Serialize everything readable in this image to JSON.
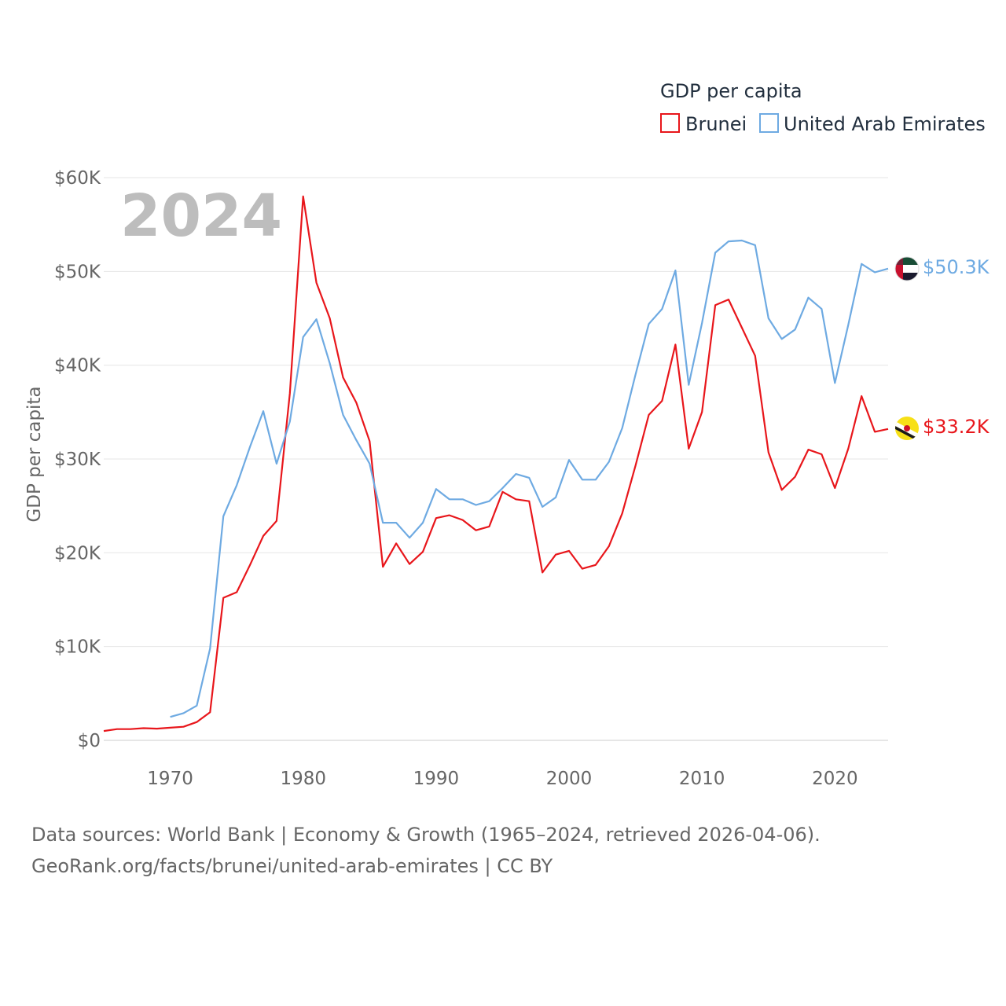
{
  "chart_data": {
    "type": "line",
    "title": "GDP per capita",
    "xlabel": "",
    "ylabel": "GDP per capita",
    "xlim": [
      1965,
      2024
    ],
    "ylim": [
      0,
      60000
    ],
    "x_ticks": [
      1970,
      1980,
      1990,
      2000,
      2010,
      2020
    ],
    "y_ticks": [
      0,
      10000,
      20000,
      30000,
      40000,
      50000,
      60000
    ],
    "y_tick_labels": [
      "$0",
      "$10K",
      "$20K",
      "$30K",
      "$40K",
      "$50K",
      "$60K"
    ],
    "year_label": "2024",
    "grid": true,
    "legend_position": "top-right",
    "series": [
      {
        "name": "Brunei",
        "color": "#e8161b",
        "end_label": "$33.2K",
        "flag": "brunei-flag",
        "x": [
          1965,
          1966,
          1967,
          1968,
          1969,
          1970,
          1971,
          1972,
          1973,
          1974,
          1975,
          1976,
          1977,
          1978,
          1979,
          1980,
          1981,
          1982,
          1983,
          1984,
          1985,
          1986,
          1987,
          1988,
          1989,
          1990,
          1991,
          1992,
          1993,
          1994,
          1995,
          1996,
          1997,
          1998,
          1999,
          2000,
          2001,
          2002,
          2003,
          2004,
          2005,
          2006,
          2007,
          2008,
          2009,
          2010,
          2011,
          2012,
          2013,
          2014,
          2015,
          2016,
          2017,
          2018,
          2019,
          2020,
          2021,
          2022,
          2023,
          2024
        ],
        "values": [
          1000,
          1200,
          1200,
          1300,
          1250,
          1350,
          1450,
          1950,
          3000,
          15200,
          15800,
          18700,
          21800,
          23400,
          37000,
          58000,
          48800,
          45000,
          38700,
          36000,
          31900,
          18500,
          21000,
          18800,
          20100,
          23700,
          24000,
          23500,
          22400,
          22800,
          26500,
          25700,
          25500,
          17900,
          19800,
          20200,
          18300,
          18700,
          20700,
          24200,
          29300,
          34700,
          36200,
          42200,
          31100,
          35000,
          46400,
          47000,
          44000,
          41000,
          30700,
          26700,
          28100,
          31000,
          30500,
          26900,
          31100,
          36700,
          32900,
          33200
        ]
      },
      {
        "name": "United Arab Emirates",
        "color": "#6eaae2",
        "end_label": "$50.3K",
        "flag": "uae-flag",
        "x": [
          1970,
          1971,
          1972,
          1973,
          1974,
          1975,
          1976,
          1977,
          1978,
          1979,
          1980,
          1981,
          1982,
          1983,
          1984,
          1985,
          1986,
          1987,
          1988,
          1989,
          1990,
          1991,
          1992,
          1993,
          1994,
          1995,
          1996,
          1997,
          1998,
          1999,
          2000,
          2001,
          2002,
          2003,
          2004,
          2005,
          2006,
          2007,
          2008,
          2009,
          2010,
          2011,
          2012,
          2013,
          2014,
          2015,
          2016,
          2017,
          2018,
          2019,
          2020,
          2021,
          2022,
          2023,
          2024
        ],
        "values": [
          2500,
          2900,
          3700,
          9800,
          23900,
          27200,
          31300,
          35100,
          29500,
          34000,
          43000,
          44900,
          40200,
          34700,
          32000,
          29500,
          23200,
          23200,
          21600,
          23200,
          26800,
          25700,
          25700,
          25100,
          25500,
          26900,
          28400,
          28000,
          24900,
          25900,
          29900,
          27800,
          27800,
          29700,
          33300,
          39000,
          44400,
          46000,
          50100,
          37900,
          44500,
          52000,
          53200,
          53300,
          52800,
          45000,
          42800,
          43800,
          47200,
          46000,
          38100,
          44300,
          50800,
          49900,
          50300
        ]
      }
    ],
    "footer": {
      "line1": "Data sources: World Bank | Economy & Growth (1965–2024, retrieved 2026-04-06).",
      "line2": "GeoRank.org/facts/brunei/united-arab-emirates | CC BY"
    }
  }
}
